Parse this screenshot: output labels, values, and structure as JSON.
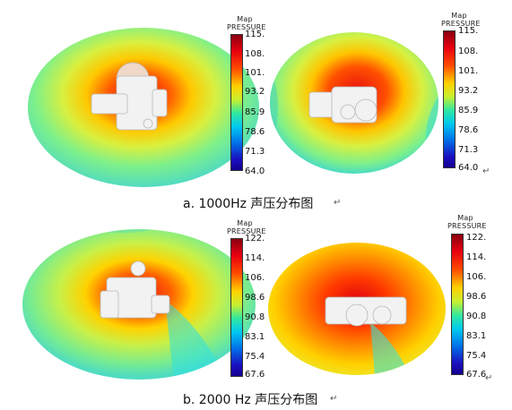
{
  "figure_a": {
    "caption": "a.   1000Hz 声压分布图",
    "left_colorbar": {
      "title_line1": "Map",
      "title_line2": "PRESSURE",
      "ticks": [
        "115.",
        "108.",
        "101.",
        "93.2",
        "85.9",
        "78.6",
        "71.3",
        "64.0"
      ]
    },
    "right_colorbar": {
      "title_line1": "Map",
      "title_line2": "PRESSURE",
      "ticks": [
        "115.",
        "108.",
        "101.",
        "93.2",
        "85.9",
        "78.6",
        "71.3",
        "64.0"
      ]
    }
  },
  "figure_b": {
    "caption": "b.   2000 Hz 声压分布图",
    "left_colorbar": {
      "title_line1": "Map",
      "title_line2": "PRESSURE",
      "ticks": [
        "122.",
        "114.",
        "106.",
        "98.6",
        "90.8",
        "83.1",
        "75.4",
        "67.6"
      ]
    },
    "right_colorbar": {
      "title_line1": "Map",
      "title_line2": "PRESSURE",
      "ticks": [
        "122.",
        "114.",
        "106.",
        "98.6",
        "90.8",
        "83.1",
        "75.4",
        "67.6"
      ]
    }
  },
  "colors": {
    "max": "#8a0010",
    "high": "#e80010",
    "orange": "#ff4a00",
    "yellow": "#ffd000",
    "green": "#c8f030",
    "teal": "#30e8a0",
    "cyan": "#00c8f0",
    "blue": "#0070e8",
    "min": "#140090"
  }
}
